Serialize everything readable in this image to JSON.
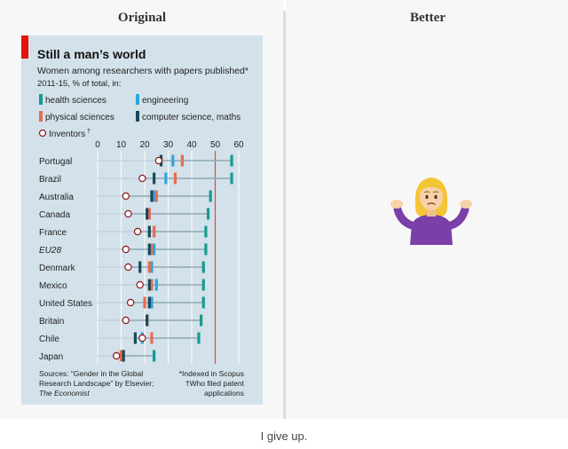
{
  "panels": {
    "original_title": "Original",
    "better_title": "Better"
  },
  "caption": "I give up.",
  "better_icon": "person-shrugging-icon",
  "colors": {
    "panel_bg": "#d3e1ea",
    "accent_red": "#e3120b",
    "health": "#169b8f",
    "engineering": "#2aa7df",
    "physical": "#ec6a4f",
    "cs_math": "#174a5c",
    "inventor_stroke": "#8b1a1a",
    "threshold_line": "#e04848"
  },
  "chart_data": {
    "type": "scatter",
    "title": "Still a man’s world",
    "subtitle_line1": "Women among researchers with papers published*",
    "subtitle_line2": "2011-15, % of total, in:",
    "legend": {
      "health": "health sciences",
      "engineering": "engineering",
      "physical": "physical sciences",
      "cs_math": "computer science, maths",
      "inventors": "Inventors",
      "inventors_mark": "†"
    },
    "xlim": [
      0,
      60
    ],
    "ticks": [
      0,
      10,
      20,
      30,
      40,
      50,
      60
    ],
    "tick_labels": [
      "0",
      "10",
      "20",
      "30",
      "40",
      "50",
      "60"
    ],
    "reference_line": 50,
    "countries": [
      "Portugal",
      "Brazil",
      "Australia",
      "Canada",
      "France",
      "EU28",
      "Denmark",
      "Mexico",
      "United States",
      "Britain",
      "Chile",
      "Japan"
    ],
    "italic_country": "EU28",
    "series": [
      {
        "name": "health sciences",
        "key": "health",
        "values": [
          57,
          57,
          48,
          47,
          46,
          46,
          45,
          45,
          45,
          44,
          43,
          24
        ]
      },
      {
        "name": "engineering",
        "key": "engineering",
        "values": [
          32,
          29,
          24,
          22,
          24,
          24,
          23,
          25,
          23,
          21,
          19,
          10
        ]
      },
      {
        "name": "physical sciences",
        "key": "physical",
        "values": [
          36,
          33,
          25,
          22,
          24,
          23,
          22,
          23,
          20,
          21,
          23,
          10
        ]
      },
      {
        "name": "computer science, maths",
        "key": "cs_math",
        "values": [
          27,
          24,
          23,
          21,
          22,
          22,
          18,
          22,
          22,
          21,
          16,
          11
        ]
      },
      {
        "name": "Inventors",
        "key": "inventors",
        "values": [
          26,
          19,
          12,
          13,
          17,
          12,
          13,
          18,
          14,
          12,
          19,
          8
        ]
      }
    ],
    "sources_line1": "Sources: “Gender in the Global",
    "sources_line2": "Research Landscape” by Elsevier;",
    "sources_line3": "The Economist",
    "footnote_line1": "*Indexed in Scopus",
    "footnote_line2": "†Who filed patent",
    "footnote_line3": "applications"
  }
}
